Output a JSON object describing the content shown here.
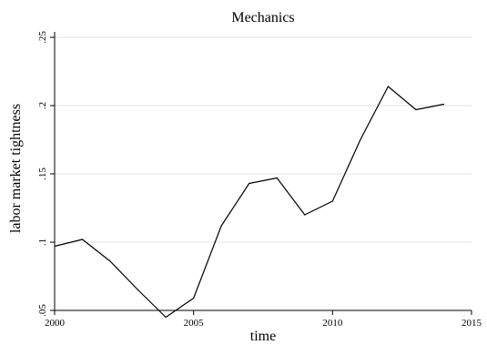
{
  "chart_data": {
    "type": "line",
    "title": "Mechanics",
    "xlabel": "time",
    "ylabel": "labor market tightness",
    "xlim": [
      2000,
      2015
    ],
    "ylim": [
      0.05,
      0.25
    ],
    "x_ticks": [
      2000,
      2005,
      2010,
      2015
    ],
    "x_tick_labels": [
      "2000",
      "2005",
      "2010",
      "2015"
    ],
    "y_ticks": [
      0.05,
      0.1,
      0.15,
      0.2,
      0.25
    ],
    "y_tick_labels": [
      ".05",
      ".1",
      ".15",
      ".2",
      ".25"
    ],
    "grid": true,
    "series": [
      {
        "x": [
          2000,
          2001,
          2002,
          2003,
          2004,
          2005,
          2006,
          2007,
          2008,
          2009,
          2010,
          2011,
          2012,
          2013,
          2014
        ],
        "values": [
          0.097,
          0.102,
          0.086,
          0.065,
          0.045,
          0.059,
          0.112,
          0.143,
          0.147,
          0.12,
          0.13,
          0.175,
          0.214,
          0.197,
          0.201
        ]
      }
    ]
  }
}
